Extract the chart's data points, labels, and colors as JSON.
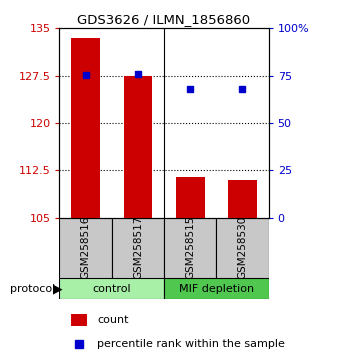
{
  "title": "GDS3626 / ILMN_1856860",
  "samples": [
    "GSM258516",
    "GSM258517",
    "GSM258515",
    "GSM258530"
  ],
  "bar_values": [
    133.5,
    127.5,
    111.5,
    111.0
  ],
  "percentile_values": [
    75.5,
    76.0,
    68.0,
    68.0
  ],
  "ylim_left": [
    105,
    135
  ],
  "ylim_right": [
    0,
    100
  ],
  "yticks_left": [
    105,
    112.5,
    120,
    127.5,
    135
  ],
  "yticks_right": [
    0,
    25,
    50,
    75,
    100
  ],
  "bar_color": "#CC0000",
  "dot_color": "#0000CC",
  "bar_width": 0.55,
  "label_count": "count",
  "label_percentile": "percentile rank within the sample",
  "protocol_label": "protocol",
  "background_label": "#C8C8C8",
  "background_control": "#A8F0A8",
  "background_mif": "#50C850",
  "group_names": [
    "control",
    "MIF depletion"
  ],
  "group_sizes": [
    2,
    2
  ],
  "n_samples": 4,
  "xlim": [
    -0.5,
    3.5
  ]
}
